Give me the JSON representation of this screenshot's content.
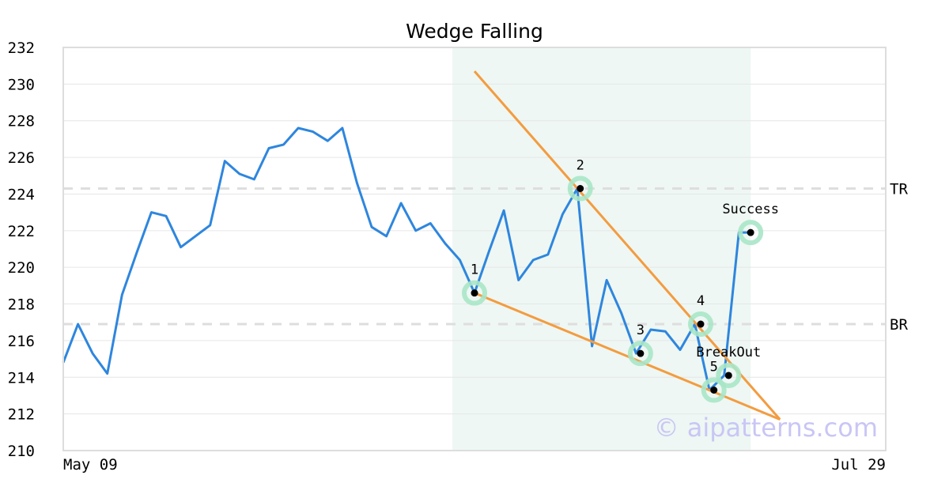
{
  "chart_data": {
    "type": "line",
    "title": "Wedge Falling",
    "xlabel": "",
    "ylabel": "",
    "ylim": [
      210,
      232
    ],
    "yticks": [
      210,
      212,
      214,
      216,
      218,
      220,
      222,
      224,
      226,
      228,
      230,
      232
    ],
    "xticks": [
      {
        "index": 0,
        "label": "May 09"
      },
      {
        "index": 56,
        "label": "Jul 29"
      }
    ],
    "grid": "horizontal",
    "series": [
      {
        "color": "#2e86de",
        "values": [
          214.8,
          216.9,
          215.3,
          214.2,
          218.5,
          220.8,
          223.0,
          222.8,
          221.1,
          221.7,
          222.3,
          225.8,
          225.1,
          224.8,
          226.5,
          226.7,
          227.6,
          227.4,
          226.9,
          227.6,
          224.6,
          222.2,
          221.7,
          223.5,
          222.0,
          222.4,
          221.3,
          220.4,
          218.6,
          220.9,
          223.1,
          219.3,
          220.4,
          220.7,
          222.9,
          224.3,
          215.7,
          219.3,
          217.5,
          215.3,
          216.6,
          216.5,
          215.5,
          216.9,
          213.3,
          214.1,
          221.9,
          221.9
        ]
      }
    ],
    "pattern_region": {
      "start_index": 26.5,
      "end_index": 46.8,
      "color": "#eef7f3"
    },
    "trend_lines": [
      {
        "color": "#f39c40",
        "from": {
          "x": 28.0,
          "y": 230.7
        },
        "to": {
          "x": 48.8,
          "y": 211.7
        }
      },
      {
        "color": "#f39c40",
        "from": {
          "x": 28.0,
          "y": 218.6
        },
        "to": {
          "x": 48.8,
          "y": 211.7
        }
      }
    ],
    "levels": [
      {
        "label": "TR",
        "value": 224.3
      },
      {
        "label": "BR",
        "value": 216.9
      }
    ],
    "markers": [
      {
        "label": "1",
        "x": 28.0,
        "y": 218.6,
        "label_pos": "above"
      },
      {
        "label": "2",
        "x": 35.2,
        "y": 224.3,
        "label_pos": "above"
      },
      {
        "label": "3",
        "x": 39.3,
        "y": 215.3,
        "label_pos": "above"
      },
      {
        "label": "4",
        "x": 43.4,
        "y": 216.9,
        "label_pos": "above"
      },
      {
        "label": "5",
        "x": 44.3,
        "y": 213.3,
        "label_pos": "above"
      },
      {
        "label": "BreakOut",
        "x": 45.3,
        "y": 214.1,
        "label_pos": "above-far"
      },
      {
        "label": "Success",
        "x": 46.8,
        "y": 221.9,
        "label_pos": "above"
      }
    ],
    "marker_color": "#a8e6c8",
    "watermark": "© aipatterns.com"
  }
}
